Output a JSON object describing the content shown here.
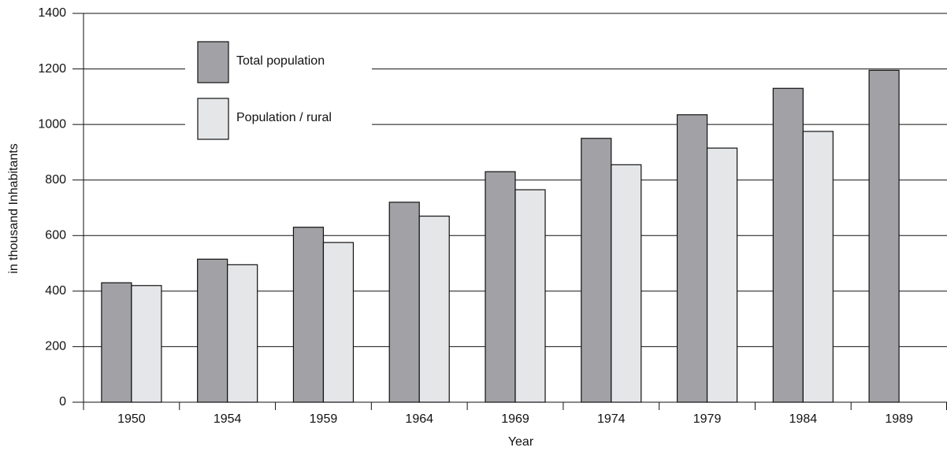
{
  "chart_data": {
    "type": "bar",
    "y_label": "in thousand Inhabitants",
    "x_label": "Year",
    "categories": [
      "1950",
      "1954",
      "1959",
      "1964",
      "1969",
      "1974",
      "1979",
      "1984",
      "1989"
    ],
    "series": [
      {
        "name": "Total population",
        "color": "#a2a2a6",
        "values": [
          430,
          515,
          630,
          720,
          830,
          950,
          1035,
          1130,
          1195
        ]
      },
      {
        "name": "Population / rural",
        "color": "#e4e6e8",
        "values": [
          420,
          495,
          575,
          670,
          765,
          855,
          915,
          975,
          null
        ]
      }
    ],
    "ylim": [
      0,
      1400
    ],
    "yticks": [
      0,
      200,
      400,
      600,
      800,
      1000,
      1200,
      1400
    ],
    "grid": true
  }
}
